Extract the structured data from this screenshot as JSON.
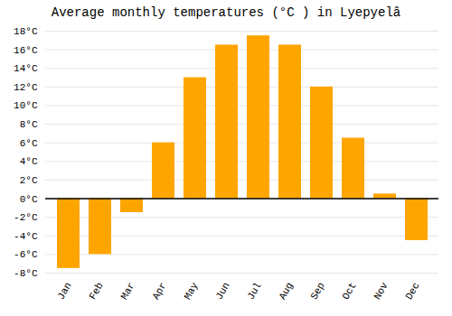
{
  "chart_data": {
    "type": "bar",
    "title": "Average monthly temperatures (°C ) in Lyepyelâ",
    "categories": [
      "Jan",
      "Feb",
      "Mar",
      "Apr",
      "May",
      "Jun",
      "Jul",
      "Aug",
      "Sep",
      "Oct",
      "Nov",
      "Dec"
    ],
    "values": [
      -7.5,
      -6.0,
      -1.5,
      6.0,
      13.0,
      16.5,
      17.5,
      16.5,
      12.0,
      6.5,
      0.5,
      -4.5
    ],
    "color": "#FFA500",
    "ylim": [
      -8,
      18
    ],
    "yticks": [
      {
        "value": -8,
        "label": "-8°C"
      },
      {
        "value": -6,
        "label": "-6°C"
      },
      {
        "value": -4,
        "label": "-4°C"
      },
      {
        "value": -2,
        "label": "-2°C"
      },
      {
        "value": 0,
        "label": "0°C"
      },
      {
        "value": 2,
        "label": "2°C"
      },
      {
        "value": 4,
        "label": "4°C"
      },
      {
        "value": 6,
        "label": "6°C"
      },
      {
        "value": 8,
        "label": "8°C"
      },
      {
        "value": 10,
        "label": "10°C"
      },
      {
        "value": 12,
        "label": "12°C"
      },
      {
        "value": 14,
        "label": "14°C"
      },
      {
        "value": 16,
        "label": "16°C"
      },
      {
        "value": 18,
        "label": "18°C"
      }
    ],
    "grid": true
  }
}
